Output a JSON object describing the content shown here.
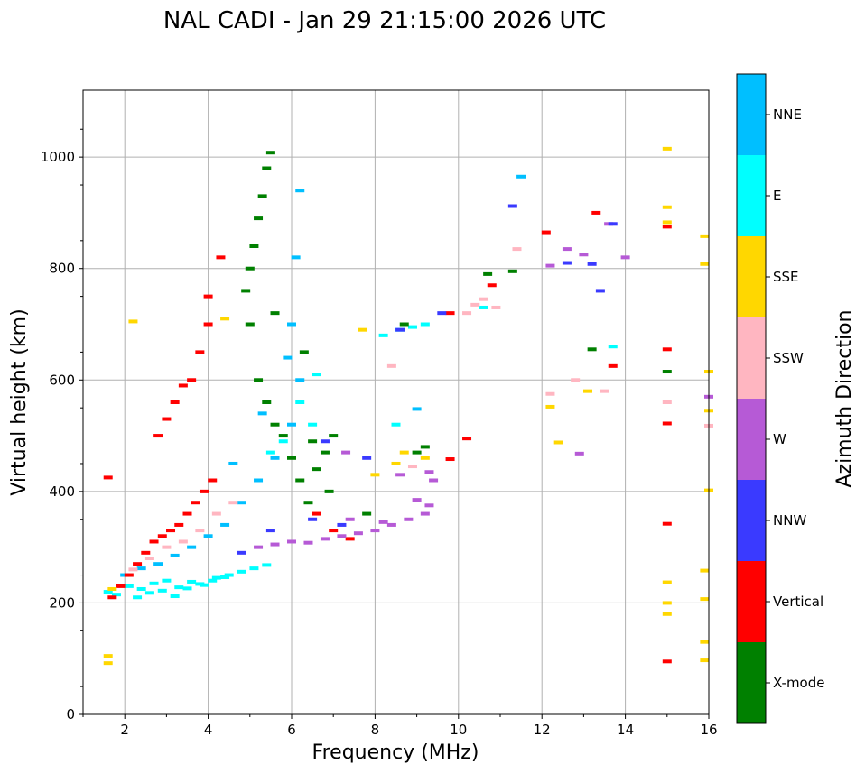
{
  "chart_data": {
    "type": "scatter",
    "title": "NAL CADI - Jan 29 21:15:00 2026 UTC",
    "xlabel": "Frequency (MHz)",
    "ylabel": "Virtual height (km)",
    "xlim": [
      1,
      16
    ],
    "ylim": [
      0,
      1120
    ],
    "xticks": [
      2,
      4,
      6,
      8,
      10,
      12,
      14,
      16
    ],
    "yticks": [
      0,
      200,
      400,
      600,
      800,
      1000
    ],
    "grid": true,
    "colorbar": {
      "title": "Azimuth Direction",
      "categories": [
        "X-mode",
        "Vertical",
        "NNW",
        "W",
        "SSW",
        "SSE",
        "E",
        "NNE"
      ],
      "colors": [
        "#008000",
        "#ff0000",
        "#3a3aff",
        "#b65ad6",
        "#ffb6c1",
        "#ffd700",
        "#00ffff",
        "#00bfff"
      ]
    },
    "clusters": [
      {
        "category": "E",
        "points": [
          [
            1.6,
            220
          ],
          [
            1.8,
            215
          ],
          [
            2.1,
            230
          ],
          [
            2.4,
            225
          ],
          [
            2.7,
            235
          ],
          [
            3.0,
            240
          ],
          [
            3.3,
            228
          ],
          [
            3.6,
            238
          ],
          [
            3.9,
            232
          ],
          [
            4.2,
            245
          ],
          [
            4.5,
            250
          ],
          [
            4.8,
            256
          ],
          [
            5.1,
            262
          ],
          [
            5.4,
            268
          ],
          [
            2.3,
            210
          ],
          [
            2.6,
            218
          ],
          [
            2.9,
            222
          ],
          [
            3.2,
            212
          ],
          [
            3.5,
            226
          ],
          [
            3.8,
            234
          ],
          [
            4.1,
            240
          ],
          [
            4.4,
            246
          ],
          [
            6.2,
            560
          ],
          [
            6.5,
            520
          ],
          [
            5.8,
            490
          ],
          [
            5.5,
            470
          ],
          [
            8.6,
            690
          ],
          [
            8.9,
            695
          ],
          [
            9.2,
            700
          ],
          [
            6.6,
            610
          ],
          [
            8.5,
            520
          ],
          [
            8.2,
            680
          ],
          [
            13.7,
            660
          ],
          [
            10.6,
            730
          ]
        ]
      },
      {
        "category": "NNE",
        "points": [
          [
            2.0,
            250
          ],
          [
            2.4,
            262
          ],
          [
            2.8,
            270
          ],
          [
            3.2,
            285
          ],
          [
            3.6,
            300
          ],
          [
            4.0,
            320
          ],
          [
            4.4,
            340
          ],
          [
            4.8,
            380
          ],
          [
            5.2,
            420
          ],
          [
            5.6,
            460
          ],
          [
            6.0,
            520
          ],
          [
            6.2,
            600
          ],
          [
            6.1,
            820
          ],
          [
            6.2,
            940
          ],
          [
            11.5,
            965
          ],
          [
            5.9,
            640
          ],
          [
            6.0,
            700
          ],
          [
            4.6,
            450
          ],
          [
            9.0,
            548
          ],
          [
            5.3,
            540
          ]
        ]
      },
      {
        "category": "Vertical",
        "points": [
          [
            1.6,
            425
          ],
          [
            1.7,
            210
          ],
          [
            1.9,
            230
          ],
          [
            2.1,
            250
          ],
          [
            2.3,
            270
          ],
          [
            2.5,
            290
          ],
          [
            2.7,
            310
          ],
          [
            2.9,
            320
          ],
          [
            3.1,
            330
          ],
          [
            3.3,
            340
          ],
          [
            3.5,
            360
          ],
          [
            3.7,
            380
          ],
          [
            3.9,
            400
          ],
          [
            4.1,
            420
          ],
          [
            3.2,
            560
          ],
          [
            3.4,
            590
          ],
          [
            3.6,
            600
          ],
          [
            3.0,
            530
          ],
          [
            2.8,
            500
          ],
          [
            3.8,
            650
          ],
          [
            4.0,
            700
          ],
          [
            4.0,
            750
          ],
          [
            4.3,
            820
          ],
          [
            6.6,
            360
          ],
          [
            7.0,
            330
          ],
          [
            7.4,
            315
          ],
          [
            9.8,
            458
          ],
          [
            9.8,
            720
          ],
          [
            10.2,
            495
          ],
          [
            12.1,
            865
          ],
          [
            13.3,
            900
          ],
          [
            13.7,
            625
          ],
          [
            15.0,
            875
          ],
          [
            15.0,
            655
          ],
          [
            15.0,
            522
          ],
          [
            15.0,
            342
          ],
          [
            15.0,
            95
          ],
          [
            10.8,
            770
          ]
        ]
      },
      {
        "category": "X-mode",
        "points": [
          [
            5.5,
            1008
          ],
          [
            5.4,
            980
          ],
          [
            5.3,
            930
          ],
          [
            5.2,
            890
          ],
          [
            5.1,
            840
          ],
          [
            5.0,
            800
          ],
          [
            4.9,
            760
          ],
          [
            5.0,
            700
          ],
          [
            5.6,
            720
          ],
          [
            5.2,
            600
          ],
          [
            5.4,
            560
          ],
          [
            5.6,
            520
          ],
          [
            5.8,
            500
          ],
          [
            6.0,
            460
          ],
          [
            6.2,
            420
          ],
          [
            6.4,
            380
          ],
          [
            6.6,
            440
          ],
          [
            6.8,
            470
          ],
          [
            7.0,
            500
          ],
          [
            6.3,
            650
          ],
          [
            6.5,
            490
          ],
          [
            9.0,
            470
          ],
          [
            9.2,
            480
          ],
          [
            10.7,
            790
          ],
          [
            11.3,
            795
          ],
          [
            13.2,
            655
          ],
          [
            15.0,
            615
          ],
          [
            7.8,
            360
          ],
          [
            8.7,
            700
          ],
          [
            6.9,
            400
          ]
        ]
      },
      {
        "category": "W",
        "points": [
          [
            5.2,
            300
          ],
          [
            5.6,
            305
          ],
          [
            6.0,
            310
          ],
          [
            6.4,
            308
          ],
          [
            6.8,
            315
          ],
          [
            7.2,
            320
          ],
          [
            7.6,
            325
          ],
          [
            8.0,
            330
          ],
          [
            8.4,
            340
          ],
          [
            8.8,
            350
          ],
          [
            9.2,
            360
          ],
          [
            9.3,
            375
          ],
          [
            9.0,
            385
          ],
          [
            7.4,
            350
          ],
          [
            8.2,
            345
          ],
          [
            9.4,
            420
          ],
          [
            8.6,
            430
          ],
          [
            9.3,
            435
          ],
          [
            12.6,
            835
          ],
          [
            13.0,
            825
          ],
          [
            13.6,
            880
          ],
          [
            14.0,
            820
          ],
          [
            12.2,
            805
          ],
          [
            12.9,
            468
          ],
          [
            16.0,
            570
          ],
          [
            7.3,
            470
          ]
        ]
      },
      {
        "category": "NNW",
        "points": [
          [
            4.8,
            290
          ],
          [
            5.5,
            330
          ],
          [
            6.5,
            350
          ],
          [
            7.2,
            340
          ],
          [
            7.8,
            460
          ],
          [
            8.6,
            690
          ],
          [
            9.6,
            720
          ],
          [
            11.3,
            912
          ],
          [
            12.6,
            810
          ],
          [
            13.2,
            808
          ],
          [
            13.4,
            760
          ],
          [
            13.7,
            880
          ],
          [
            6.8,
            490
          ]
        ]
      },
      {
        "category": "SSW",
        "points": [
          [
            2.2,
            260
          ],
          [
            2.6,
            280
          ],
          [
            3.0,
            300
          ],
          [
            3.4,
            310
          ],
          [
            3.8,
            330
          ],
          [
            4.2,
            360
          ],
          [
            4.6,
            380
          ],
          [
            10.2,
            720
          ],
          [
            10.4,
            735
          ],
          [
            10.6,
            745
          ],
          [
            10.9,
            730
          ],
          [
            11.4,
            835
          ],
          [
            12.2,
            575
          ],
          [
            12.8,
            600
          ],
          [
            13.5,
            580
          ],
          [
            8.4,
            625
          ],
          [
            15.0,
            560
          ],
          [
            16.0,
            518
          ],
          [
            8.9,
            445
          ]
        ]
      },
      {
        "category": "SSE",
        "points": [
          [
            1.6,
            92
          ],
          [
            1.6,
            105
          ],
          [
            1.7,
            225
          ],
          [
            2.2,
            705
          ],
          [
            4.4,
            710
          ],
          [
            7.7,
            690
          ],
          [
            8.0,
            430
          ],
          [
            8.5,
            450
          ],
          [
            8.7,
            470
          ],
          [
            9.2,
            460
          ],
          [
            12.4,
            488
          ],
          [
            12.2,
            552
          ],
          [
            13.1,
            580
          ],
          [
            15.0,
            1015
          ],
          [
            15.0,
            910
          ],
          [
            15.0,
            883
          ],
          [
            15.0,
            237
          ],
          [
            15.0,
            200
          ],
          [
            15.0,
            180
          ],
          [
            15.9,
            858
          ],
          [
            15.9,
            808
          ],
          [
            16.0,
            615
          ],
          [
            16.0,
            545
          ],
          [
            16.0,
            402
          ],
          [
            15.9,
            258
          ],
          [
            15.9,
            207
          ],
          [
            15.9,
            130
          ],
          [
            15.9,
            97
          ]
        ]
      }
    ]
  }
}
